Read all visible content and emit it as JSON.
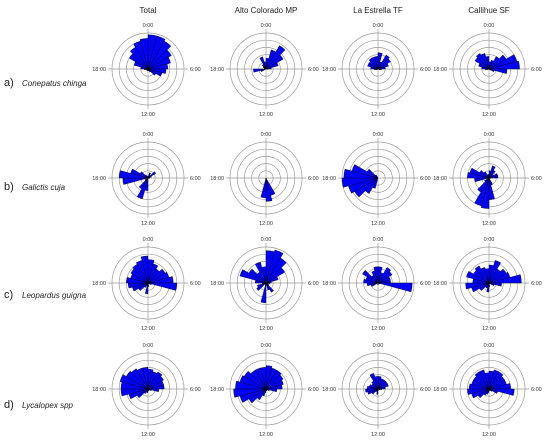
{
  "columns": [
    "Total",
    "Alto Colorado MP",
    "La Estrella TF",
    "Callihue SF"
  ],
  "rows": [
    {
      "letter": "a)",
      "species": "Conepatus chinga"
    },
    {
      "letter": "b)",
      "species": "Galictis cuja"
    },
    {
      "letter": "c)",
      "species": "Leopardus guigna"
    },
    {
      "letter": "d)",
      "species": "Lycalopex spp"
    }
  ],
  "hour_labels": {
    "top": "0:00",
    "right": "6:00",
    "bottom": "12:00",
    "left": "18:00"
  },
  "colors": {
    "wedge": "#0000ff",
    "wedge_stroke": "#000000",
    "ring": "#9a9a9a"
  },
  "chart_data": {
    "type": "rose",
    "rings": 5,
    "sectors": 24,
    "sector_unit": "hour of day (clockwise from 0:00 at top)",
    "value_scale": "fraction of outer ring radius",
    "panels": [
      [
        {
          "values": [
            0.95,
            0.95,
            0.9,
            0.75,
            0.65,
            0.55,
            0.5,
            0.4,
            0.25,
            0.1,
            0.05,
            0.05,
            0.05,
            0.05,
            0.05,
            0.05,
            0.05,
            0.1,
            0.2,
            0.4,
            0.6,
            0.7,
            0.8,
            0.85
          ]
        },
        {
          "values": [
            0.3,
            0.55,
            0.75,
            0.55,
            0.35,
            0.15,
            0.05,
            0.0,
            0.0,
            0.0,
            0.0,
            0.0,
            0.0,
            0.0,
            0.0,
            0.0,
            0.15,
            0.35,
            0.05,
            0.05,
            0.1,
            0.15,
            0.35,
            0.2
          ]
        },
        {
          "values": [
            0.45,
            0.2,
            0.45,
            0.4,
            0.3,
            0.2,
            0.1,
            0.05,
            0.0,
            0.0,
            0.0,
            0.0,
            0.0,
            0.0,
            0.0,
            0.0,
            0.05,
            0.1,
            0.2,
            0.3,
            0.3,
            0.35,
            0.35,
            0.35
          ]
        },
        {
          "values": [
            0.2,
            0.25,
            0.4,
            0.55,
            0.8,
            0.85,
            0.5,
            0.15,
            0.05,
            0.0,
            0.0,
            0.0,
            0.0,
            0.0,
            0.0,
            0.0,
            0.05,
            0.1,
            0.2,
            0.3,
            0.45,
            0.5,
            0.45,
            0.35
          ]
        }
      ],
      [
        {
          "values": [
            0.05,
            0.15,
            0.1,
            0.25,
            0.1,
            0.05,
            0.05,
            0.0,
            0.0,
            0.0,
            0.0,
            0.0,
            0.35,
            0.6,
            0.35,
            0.1,
            0.0,
            0.7,
            0.8,
            0.5,
            0.25,
            0.1,
            0.05,
            0.05
          ]
        },
        {
          "values": [
            0.0,
            0.0,
            0.0,
            0.0,
            0.0,
            0.0,
            0.0,
            0.0,
            0.0,
            0.0,
            0.5,
            0.65,
            0.55,
            0.0,
            0.0,
            0.0,
            0.0,
            0.0,
            0.0,
            0.0,
            0.0,
            0.0,
            0.0,
            0.0
          ]
        },
        {
          "values": [
            0.0,
            0.0,
            0.0,
            0.0,
            0.0,
            0.0,
            0.0,
            0.0,
            0.0,
            0.0,
            0.0,
            0.0,
            0.0,
            0.3,
            0.5,
            0.75,
            0.85,
            1.0,
            0.95,
            0.75,
            0.35,
            0.1,
            0.0,
            0.0
          ]
        },
        {
          "values": [
            0.2,
            0.35,
            0.25,
            0.15,
            0.25,
            0.25,
            0.05,
            0.0,
            0.0,
            0.0,
            0.2,
            0.6,
            0.85,
            0.8,
            0.45,
            0.15,
            0.0,
            0.4,
            0.6,
            0.55,
            0.3,
            0.2,
            0.1,
            0.1
          ]
        }
      ],
      [
        {
          "values": [
            0.65,
            0.55,
            0.45,
            0.55,
            0.6,
            0.7,
            0.8,
            0.1,
            0.05,
            0.0,
            0.0,
            0.1,
            0.3,
            0.1,
            0.15,
            0.3,
            0.45,
            0.55,
            0.6,
            0.5,
            0.55,
            0.6,
            0.65,
            0.75
          ]
        },
        {
          "values": [
            0.9,
            0.95,
            0.8,
            0.6,
            0.35,
            0.15,
            0.1,
            0.0,
            0.1,
            0.3,
            0.2,
            0.0,
            0.55,
            0.05,
            0.0,
            0.3,
            0.25,
            0.1,
            0.3,
            0.75,
            0.55,
            0.35,
            0.6,
            0.45
          ]
        },
        {
          "values": [
            0.45,
            0.3,
            0.5,
            0.45,
            0.35,
            0.35,
            0.95,
            0.05,
            0.0,
            0.0,
            0.0,
            0.05,
            0.05,
            0.0,
            0.0,
            0.0,
            0.2,
            0.3,
            0.4,
            0.35,
            0.5,
            0.25,
            0.35,
            0.45
          ]
        },
        {
          "values": [
            0.5,
            0.65,
            0.45,
            0.55,
            0.6,
            0.9,
            0.35,
            0.15,
            0.05,
            0.0,
            0.0,
            0.1,
            0.25,
            0.15,
            0.15,
            0.3,
            0.5,
            0.65,
            0.45,
            0.65,
            0.5,
            0.55,
            0.45,
            0.4
          ]
        }
      ],
      [
        {
          "values": [
            0.55,
            0.5,
            0.55,
            0.5,
            0.45,
            0.45,
            0.3,
            0.1,
            0.05,
            0.05,
            0.05,
            0.05,
            0.1,
            0.1,
            0.15,
            0.35,
            0.55,
            0.75,
            0.75,
            0.8,
            0.7,
            0.65,
            0.6,
            0.6
          ]
        },
        {
          "values": [
            0.65,
            0.6,
            0.6,
            0.55,
            0.5,
            0.45,
            0.3,
            0.1,
            0.05,
            0.05,
            0.05,
            0.05,
            0.1,
            0.2,
            0.35,
            0.55,
            0.75,
            0.9,
            0.85,
            0.75,
            0.7,
            0.6,
            0.6,
            0.6
          ]
        },
        {
          "values": [
            0.35,
            0.3,
            0.3,
            0.3,
            0.3,
            0.2,
            0.1,
            0.05,
            0.0,
            0.0,
            0.0,
            0.05,
            0.15,
            0.05,
            0.1,
            0.2,
            0.3,
            0.35,
            0.3,
            0.25,
            0.2,
            0.25,
            0.45,
            0.35
          ]
        },
        {
          "values": [
            0.5,
            0.55,
            0.55,
            0.5,
            0.5,
            0.6,
            0.7,
            0.25,
            0.1,
            0.05,
            0.05,
            0.05,
            0.1,
            0.15,
            0.2,
            0.35,
            0.5,
            0.6,
            0.55,
            0.5,
            0.5,
            0.55,
            0.55,
            0.45
          ]
        }
      ]
    ]
  }
}
